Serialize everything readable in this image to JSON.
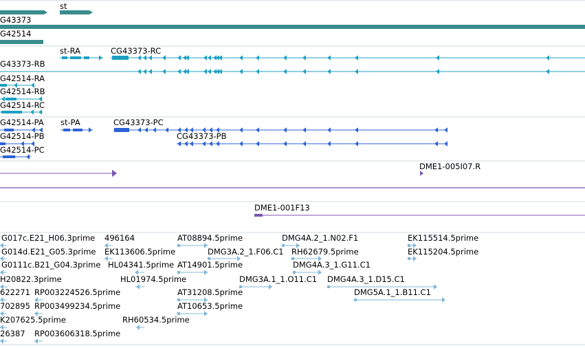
{
  "colors": {
    "gene": "#3a8c8c",
    "transcript": "#1ea0c2",
    "protein": "#2d62d6",
    "clone": "#7b55b0",
    "est": "#7fb8db",
    "separator": "#cfd8e2"
  },
  "genes": {
    "labels": [
      "st",
      "G43373",
      "G42514"
    ]
  },
  "transcripts": {
    "labels": [
      "st-RA",
      "CG43373-RC",
      "G43373-RB",
      "G42514-RA",
      "G42514-RB",
      "G42514-RC"
    ]
  },
  "proteins": {
    "labels": [
      "G42514-PA",
      "st-PA",
      "CG43373-PC",
      "G42514-PB",
      "CG43373-PB",
      "G42514-PC"
    ]
  },
  "clones": {
    "labels": [
      "DME1-005I07.R",
      "DME1-001F13"
    ]
  },
  "ests": {
    "labels": [
      "G017c.E21_H06.3prime",
      "496164",
      "AT08894.5prime",
      "DMG4A.2_1.N02.F1",
      "EK115514.5prime",
      "G014d.E21_G05.3prime",
      "EK113606.5prime",
      "DMG3A.2_1.F06.C1",
      "RH62679.5prime",
      "EK115204.5prime",
      "G0111c.B21_G04.3prime",
      "HL04341.5prime",
      "AT14901.5prime",
      "DMG4A.3_1.G11.C1",
      "H20822.3prime",
      "HL01974.5prime",
      "DMG3A.1_1.O11.C1",
      "DMG4A.3_1.D15.C1",
      "622271",
      "RP003224526.5prime",
      "AT31208.5prime",
      "DMG5A.1_1.B11.C1",
      "702895",
      "RP003499234.5prime",
      "AT10653.5prime",
      "K207625.5prime",
      "RH60534.5prime",
      "26387",
      "RP003606318.5prime"
    ]
  }
}
